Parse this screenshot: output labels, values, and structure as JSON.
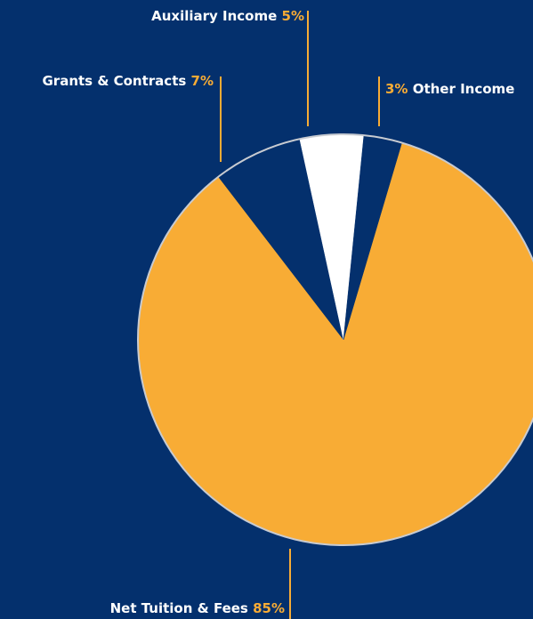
{
  "chart_data": {
    "type": "pie",
    "colors": {
      "background": "#04306d",
      "accent": "#f8ac35",
      "slice_light": "#ffffff",
      "slice_dark": "#04306d",
      "leader_line": "#f8ac35",
      "pie_border": "#c8cbd1"
    },
    "slices": [
      {
        "label": "Net Tuition & Fees",
        "value": 85,
        "value_label": "85%",
        "color": "#f8ac35"
      },
      {
        "label": "Grants & Contracts",
        "value": 7,
        "value_label": "7%",
        "color": "#04306d"
      },
      {
        "label": "Auxiliary Income",
        "value": 5,
        "value_label": "5%",
        "color": "#ffffff"
      },
      {
        "label": "Other Income",
        "value": 3,
        "value_label": "3%",
        "color": "#04306d"
      }
    ]
  }
}
